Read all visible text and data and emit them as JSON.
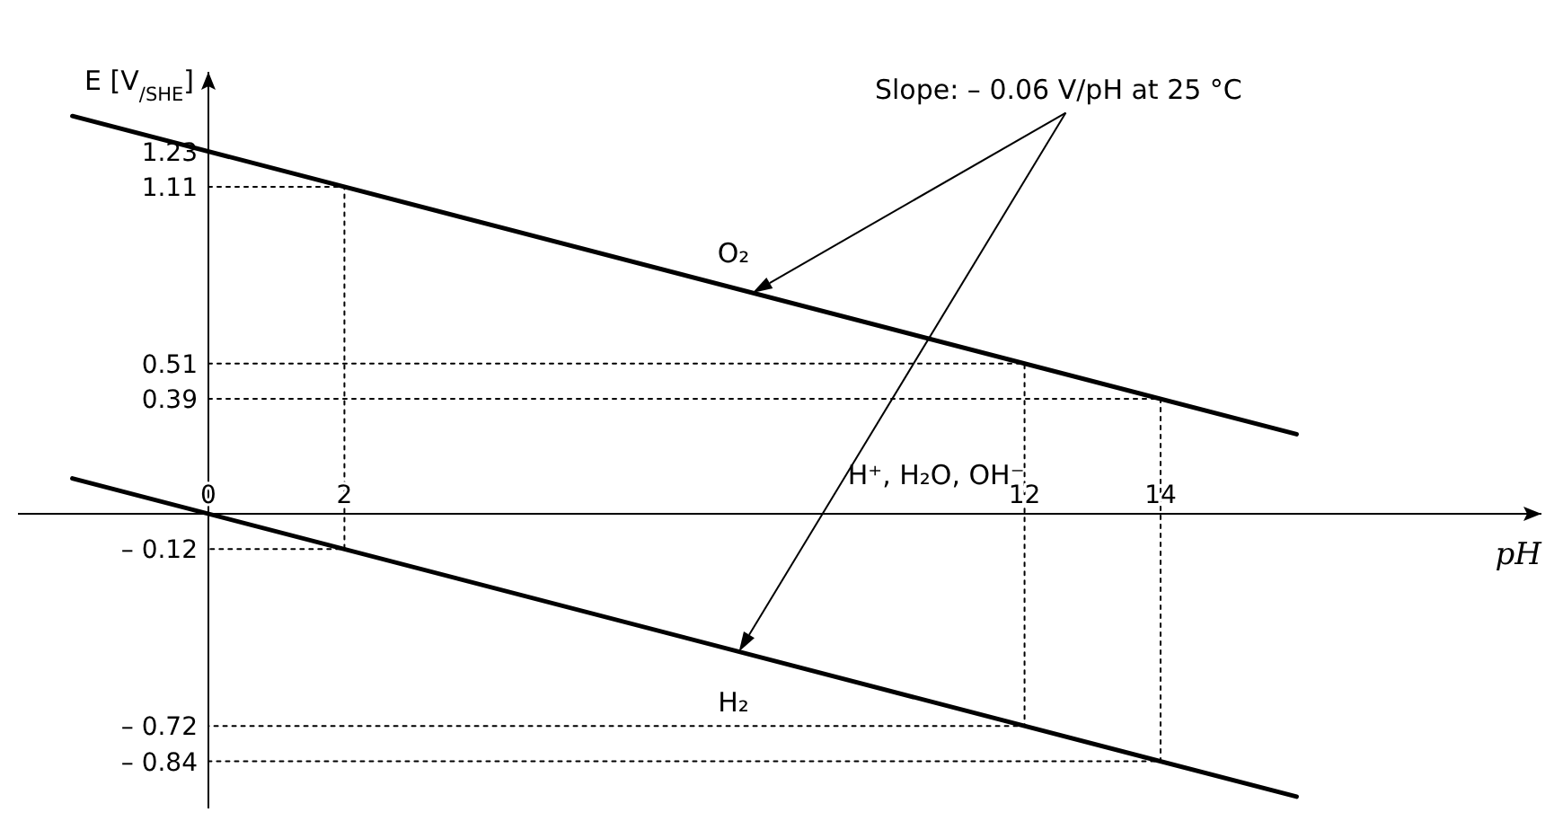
{
  "chart_data": {
    "type": "line",
    "xlabel": "pH",
    "ylabel": "E [V$_{/SHE}$]",
    "xlim": [
      -2.8,
      19.6
    ],
    "ylim": [
      -1.0,
      1.5
    ],
    "xticks": [
      0,
      2,
      12,
      14
    ],
    "yticks": [
      1.23,
      1.11,
      0.51,
      0.39,
      {
        "value": -0.12,
        "label": "– 0.12"
      },
      {
        "value": -0.72,
        "label": "– 0.72"
      },
      {
        "value": -0.84,
        "label": "– 0.84"
      }
    ],
    "grid": false,
    "line_style": "solid",
    "marker": "none",
    "series": [
      {
        "name": "O₂",
        "color": "#000000",
        "x": [
          -2,
          16
        ],
        "values": [
          1.35,
          0.27
        ]
      },
      {
        "name": "H₂",
        "color": "#000000",
        "x": [
          -2,
          16
        ],
        "values": [
          0.12,
          -0.96
        ]
      },
      {
        "color": "#000000",
        "line_style": "dotted",
        "x": [
          0,
          2,
          2,
          0
        ],
        "values": [
          1.11,
          1.11,
          -0.12,
          -0.12
        ]
      },
      {
        "color": "#000000",
        "line_style": "dotted",
        "x": [
          0,
          12,
          12,
          0
        ],
        "values": [
          0.51,
          0.51,
          -0.72,
          -0.72
        ]
      },
      {
        "color": "#000000",
        "line_style": "dotted",
        "x": [
          0,
          14,
          14,
          0
        ],
        "values": [
          0.39,
          0.39,
          -0.84,
          -0.84
        ]
      }
    ],
    "annotations": [
      "Slope: – 0.06 V/pH at 25 °C",
      "H⁺, H₂O, OH⁻"
    ]
  }
}
